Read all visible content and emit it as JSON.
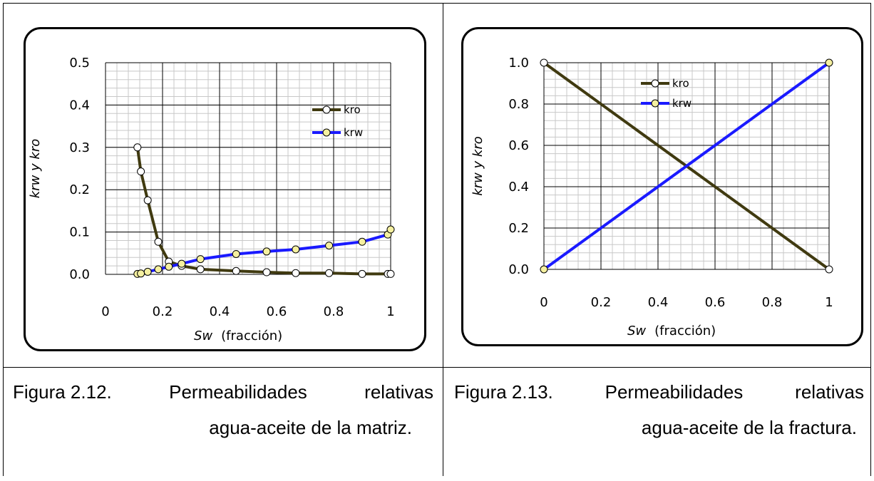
{
  "chart_data": [
    {
      "type": "line",
      "xlabel_var": "Sw",
      "xlabel_rest": "(fracción)",
      "ylabel": "krw y kro",
      "xlim": [
        0,
        1
      ],
      "ylim": [
        0,
        0.5
      ],
      "x_ticks": [
        "0",
        "0.2",
        "0.4",
        "0.6",
        "0.8",
        "1"
      ],
      "x_tick_values": [
        0,
        0.2,
        0.4,
        0.6,
        0.8,
        1
      ],
      "y_ticks": [
        "0.0",
        "0.1",
        "0.2",
        "0.3",
        "0.4",
        "0.5"
      ],
      "y_tick_values": [
        0,
        0.1,
        0.2,
        0.3,
        0.4,
        0.5
      ],
      "grid": true,
      "legend": "right",
      "series": [
        {
          "name": "kro",
          "color": "#403a10",
          "marker_fill": "#ffffff",
          "x": [
            0.112,
            0.124,
            0.148,
            0.185,
            0.222,
            0.267,
            0.333,
            0.458,
            0.565,
            0.667,
            0.784,
            0.9,
            0.99,
            1.0
          ],
          "y": [
            0.3,
            0.243,
            0.175,
            0.077,
            0.03,
            0.02,
            0.012,
            0.008,
            0.005,
            0.003,
            0.003,
            0.001,
            0.001,
            0.001
          ]
        },
        {
          "name": "krw",
          "color": "#1a1aff",
          "marker_fill": "#f5f0a0",
          "x": [
            0.112,
            0.124,
            0.148,
            0.185,
            0.222,
            0.267,
            0.333,
            0.458,
            0.565,
            0.667,
            0.784,
            0.9,
            0.99,
            1.0
          ],
          "y": [
            0.001,
            0.002,
            0.006,
            0.012,
            0.018,
            0.025,
            0.036,
            0.048,
            0.054,
            0.059,
            0.068,
            0.077,
            0.094,
            0.106
          ]
        }
      ]
    },
    {
      "type": "line",
      "xlabel_var": "Sw",
      "xlabel_rest": "(fracción)",
      "ylabel": "krw y kro",
      "xlim": [
        0,
        1
      ],
      "ylim": [
        0,
        1
      ],
      "x_ticks": [
        "0",
        "0.2",
        "0.4",
        "0.6",
        "0.8",
        "1"
      ],
      "x_tick_values": [
        0,
        0.2,
        0.4,
        0.6,
        0.8,
        1
      ],
      "y_ticks": [
        "0.0",
        "0.2",
        "0.4",
        "0.6",
        "0.8",
        "1.0"
      ],
      "y_tick_values": [
        0,
        0.2,
        0.4,
        0.6,
        0.8,
        1
      ],
      "grid": true,
      "legend": "top-right",
      "series": [
        {
          "name": "kro",
          "color": "#403a10",
          "marker_fill": "#ffffff",
          "x": [
            0,
            1
          ],
          "y": [
            1,
            0
          ]
        },
        {
          "name": "krw",
          "color": "#1a1aff",
          "marker_fill": "#f5f0a0",
          "x": [
            0,
            1
          ],
          "y": [
            0,
            1
          ]
        }
      ]
    }
  ],
  "captions": [
    {
      "fig": "Figura 2.12.",
      "line1_word1": "Permeabilidades",
      "line1_word2": "relativas",
      "line2": "agua-aceite de la matriz."
    },
    {
      "fig": "Figura 2.13.",
      "line1_word1": "Permeabilidades",
      "line1_word2": "relativas",
      "line2": "agua-aceite de la fractura."
    }
  ]
}
